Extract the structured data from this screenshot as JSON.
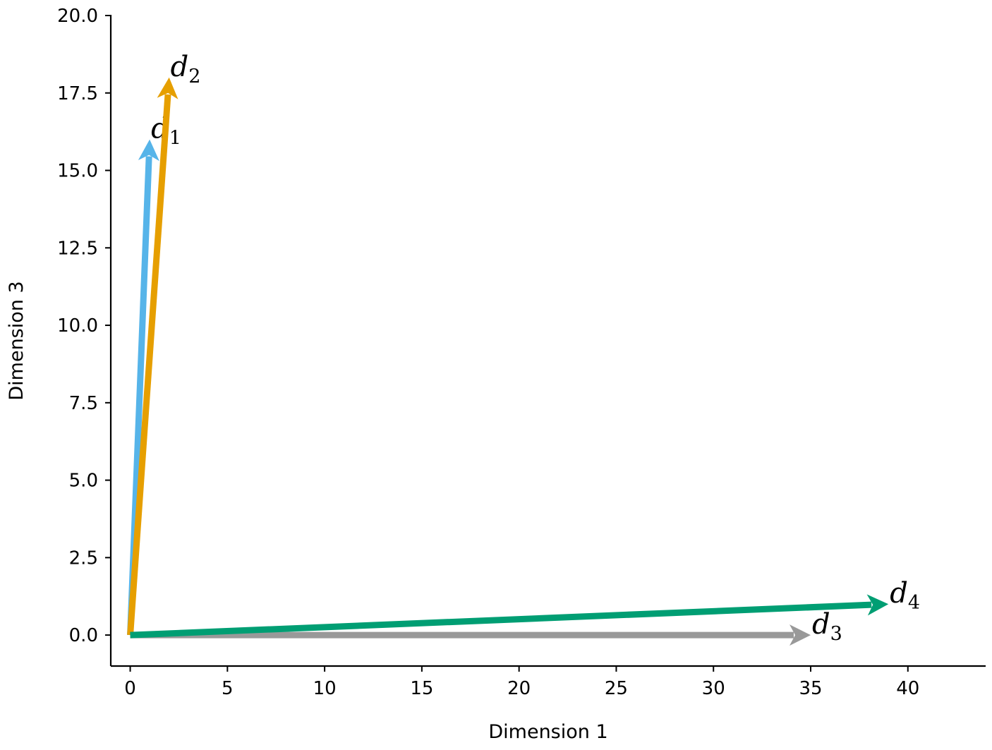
{
  "chart_data": {
    "type": "quiver",
    "xlabel": "Dimension 1",
    "ylabel": "Dimension 3",
    "xlim": [
      -1,
      44
    ],
    "ylim": [
      -1,
      20
    ],
    "xticks": [
      0,
      5,
      10,
      15,
      20,
      25,
      30,
      35,
      40
    ],
    "yticks": [
      0.0,
      2.5,
      5.0,
      7.5,
      10.0,
      12.5,
      15.0,
      17.5,
      20.0
    ],
    "xtick_labels": [
      "0",
      "5",
      "10",
      "15",
      "20",
      "25",
      "30",
      "35",
      "40"
    ],
    "ytick_labels": [
      "0.0",
      "2.5",
      "5.0",
      "7.5",
      "10.0",
      "12.5",
      "15.0",
      "17.5",
      "20.0"
    ],
    "grid": false,
    "vectors": [
      {
        "name": "d",
        "subscript": "1",
        "x0": 0,
        "y0": 0,
        "x": 1,
        "y": 16,
        "color": "#56B4E9"
      },
      {
        "name": "d",
        "subscript": "2",
        "x0": 0,
        "y0": 0,
        "x": 2,
        "y": 18,
        "color": "#E69F00"
      },
      {
        "name": "d",
        "subscript": "3",
        "x0": 0,
        "y0": 0,
        "x": 35,
        "y": 0,
        "color": "#999999"
      },
      {
        "name": "d",
        "subscript": "4",
        "x0": 0,
        "y0": 0,
        "x": 39,
        "y": 1,
        "color": "#009E73"
      }
    ]
  }
}
